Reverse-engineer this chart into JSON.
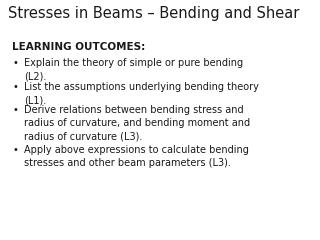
{
  "title": "Stresses in Beams – Bending and Shear",
  "section_label": "LEARNING OUTCOMES:",
  "bullet_points": [
    "Explain the theory of simple or pure bending\n(L2).",
    "List the assumptions underlying bending theory\n(L1).",
    "Derive relations between bending stress and\nradius of curvature, and bending moment and\nradius of curvature (L3).",
    "Apply above expressions to calculate bending\nstresses and other beam parameters (L3)."
  ],
  "bg_color": "#ffffff",
  "title_color": "#1a1a1a",
  "text_color": "#1a1a1a",
  "title_fontsize": 10.5,
  "section_fontsize": 7.5,
  "bullet_fontsize": 7.0,
  "bullet_char": "•"
}
